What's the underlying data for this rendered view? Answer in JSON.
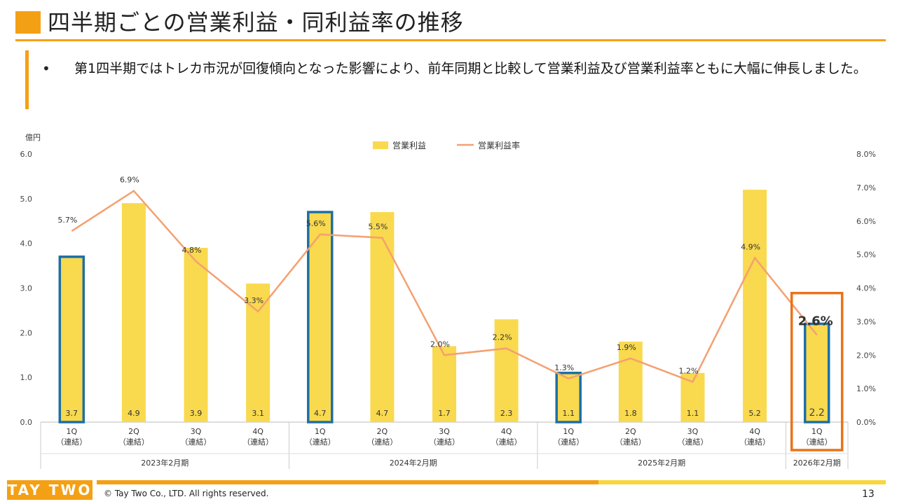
{
  "header": {
    "title": "四半期ごとの営業利益・同利益率の推移"
  },
  "bullet": {
    "text": "第1四半期ではトレカ市況が回復傾向となった影響により、前年同期と比較して営業利益及び営業利益率ともに大幅に伸長しました。"
  },
  "chart_data": {
    "type": "bar",
    "unit_label": "億円",
    "categories": [
      "1Q\n（連結）",
      "2Q\n（連結）",
      "3Q\n（連結）",
      "4Q\n（連結）",
      "1Q\n（連結）",
      "2Q\n（連結）",
      "3Q\n（連結）",
      "4Q\n（連結）",
      "1Q\n（連結）",
      "2Q\n（連結）",
      "3Q\n（連結）",
      "4Q\n（連結）",
      "1Q\n（連結）"
    ],
    "groups": [
      {
        "label": "2023年2月期",
        "count": 4
      },
      {
        "label": "2024年2月期",
        "count": 4
      },
      {
        "label": "2025年2月期",
        "count": 4
      },
      {
        "label": "2026年2月期",
        "count": 1
      }
    ],
    "series": [
      {
        "name": "営業利益",
        "type": "bar",
        "color": "#f9d94e",
        "values": [
          3.7,
          4.9,
          3.9,
          3.1,
          4.7,
          4.7,
          1.7,
          2.3,
          1.1,
          1.8,
          1.1,
          5.2,
          2.2
        ],
        "labels": [
          "3.7",
          "4.9",
          "3.9",
          "3.1",
          "4.7",
          "4.7",
          "1.7",
          "2.3",
          "1.1",
          "1.8",
          "1.1",
          "5.2",
          "2.2"
        ]
      },
      {
        "name": "営業利益率",
        "type": "line",
        "color": "#f4a070",
        "axis": "right",
        "values": [
          5.7,
          6.9,
          4.8,
          3.3,
          5.6,
          5.5,
          2.0,
          2.2,
          1.3,
          1.9,
          1.2,
          4.9,
          2.6
        ],
        "labels": [
          "5.7%",
          "6.9%",
          "4.8%",
          "3.3%",
          "5.6%",
          "5.5%",
          "2.0%",
          "2.2%",
          "1.3%",
          "1.9%",
          "1.2%",
          "4.9%",
          "2.6%"
        ]
      }
    ],
    "highlighted_indices": [
      0,
      4,
      8,
      12
    ],
    "highlight_border_color": "#1d6fa5",
    "callout_color": "#e8731a",
    "ylim_left": [
      0,
      6
    ],
    "yticks_left": [
      "0.0",
      "1.0",
      "2.0",
      "3.0",
      "4.0",
      "5.0",
      "6.0"
    ],
    "ylim_right": [
      0,
      8
    ],
    "yticks_right": [
      "0.0%",
      "1.0%",
      "2.0%",
      "3.0%",
      "4.0%",
      "5.0%",
      "6.0%",
      "7.0%",
      "8.0%"
    ],
    "legend_position": "top-center",
    "grid": false
  },
  "footer": {
    "logo": "TAY TWO",
    "copyright": "© Tay Two Co., LTD. All rights reserved.",
    "page": "13"
  }
}
